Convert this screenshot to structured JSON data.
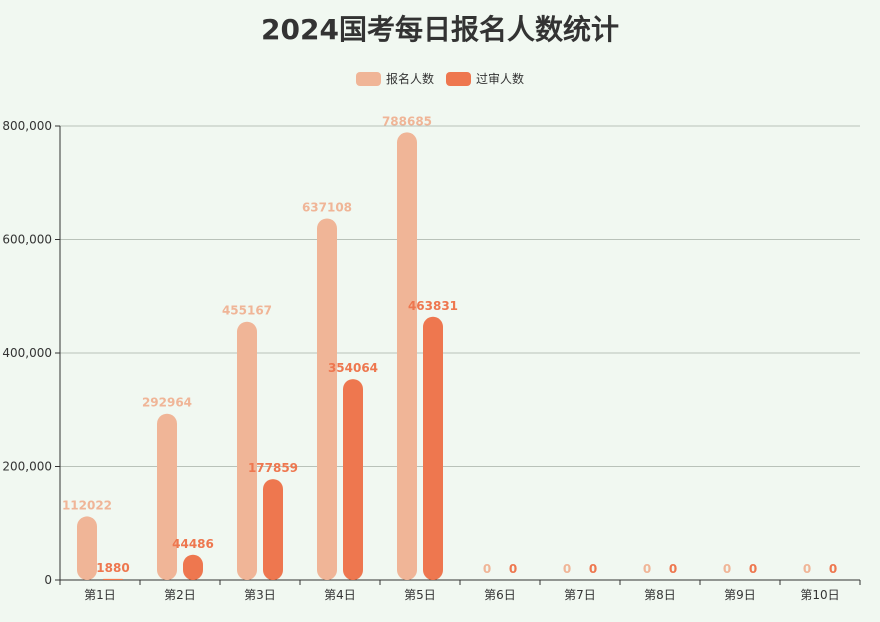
{
  "chart_data": {
    "type": "bar",
    "title": "2024国考每日报名人数统计",
    "categories": [
      "第1日",
      "第2日",
      "第3日",
      "第4日",
      "第5日",
      "第6日",
      "第7日",
      "第8日",
      "第9日",
      "第10日"
    ],
    "series": [
      {
        "name": "报名人数",
        "color": "#f0b597",
        "values": [
          112022,
          292964,
          455167,
          637108,
          788685,
          0,
          0,
          0,
          0,
          0
        ]
      },
      {
        "name": "过审人数",
        "color": "#ee774f",
        "values": [
          1880,
          44486,
          177859,
          354064,
          463831,
          0,
          0,
          0,
          0,
          0
        ]
      }
    ],
    "ylim": [
      0,
      800000
    ],
    "yticks": [
      0,
      200000,
      400000,
      600000,
      800000
    ],
    "ytick_labels": [
      "0",
      "200,000",
      "400,000",
      "600,000",
      "800,000"
    ],
    "grid": true,
    "legend_position": "top-center",
    "data_labels": true
  }
}
